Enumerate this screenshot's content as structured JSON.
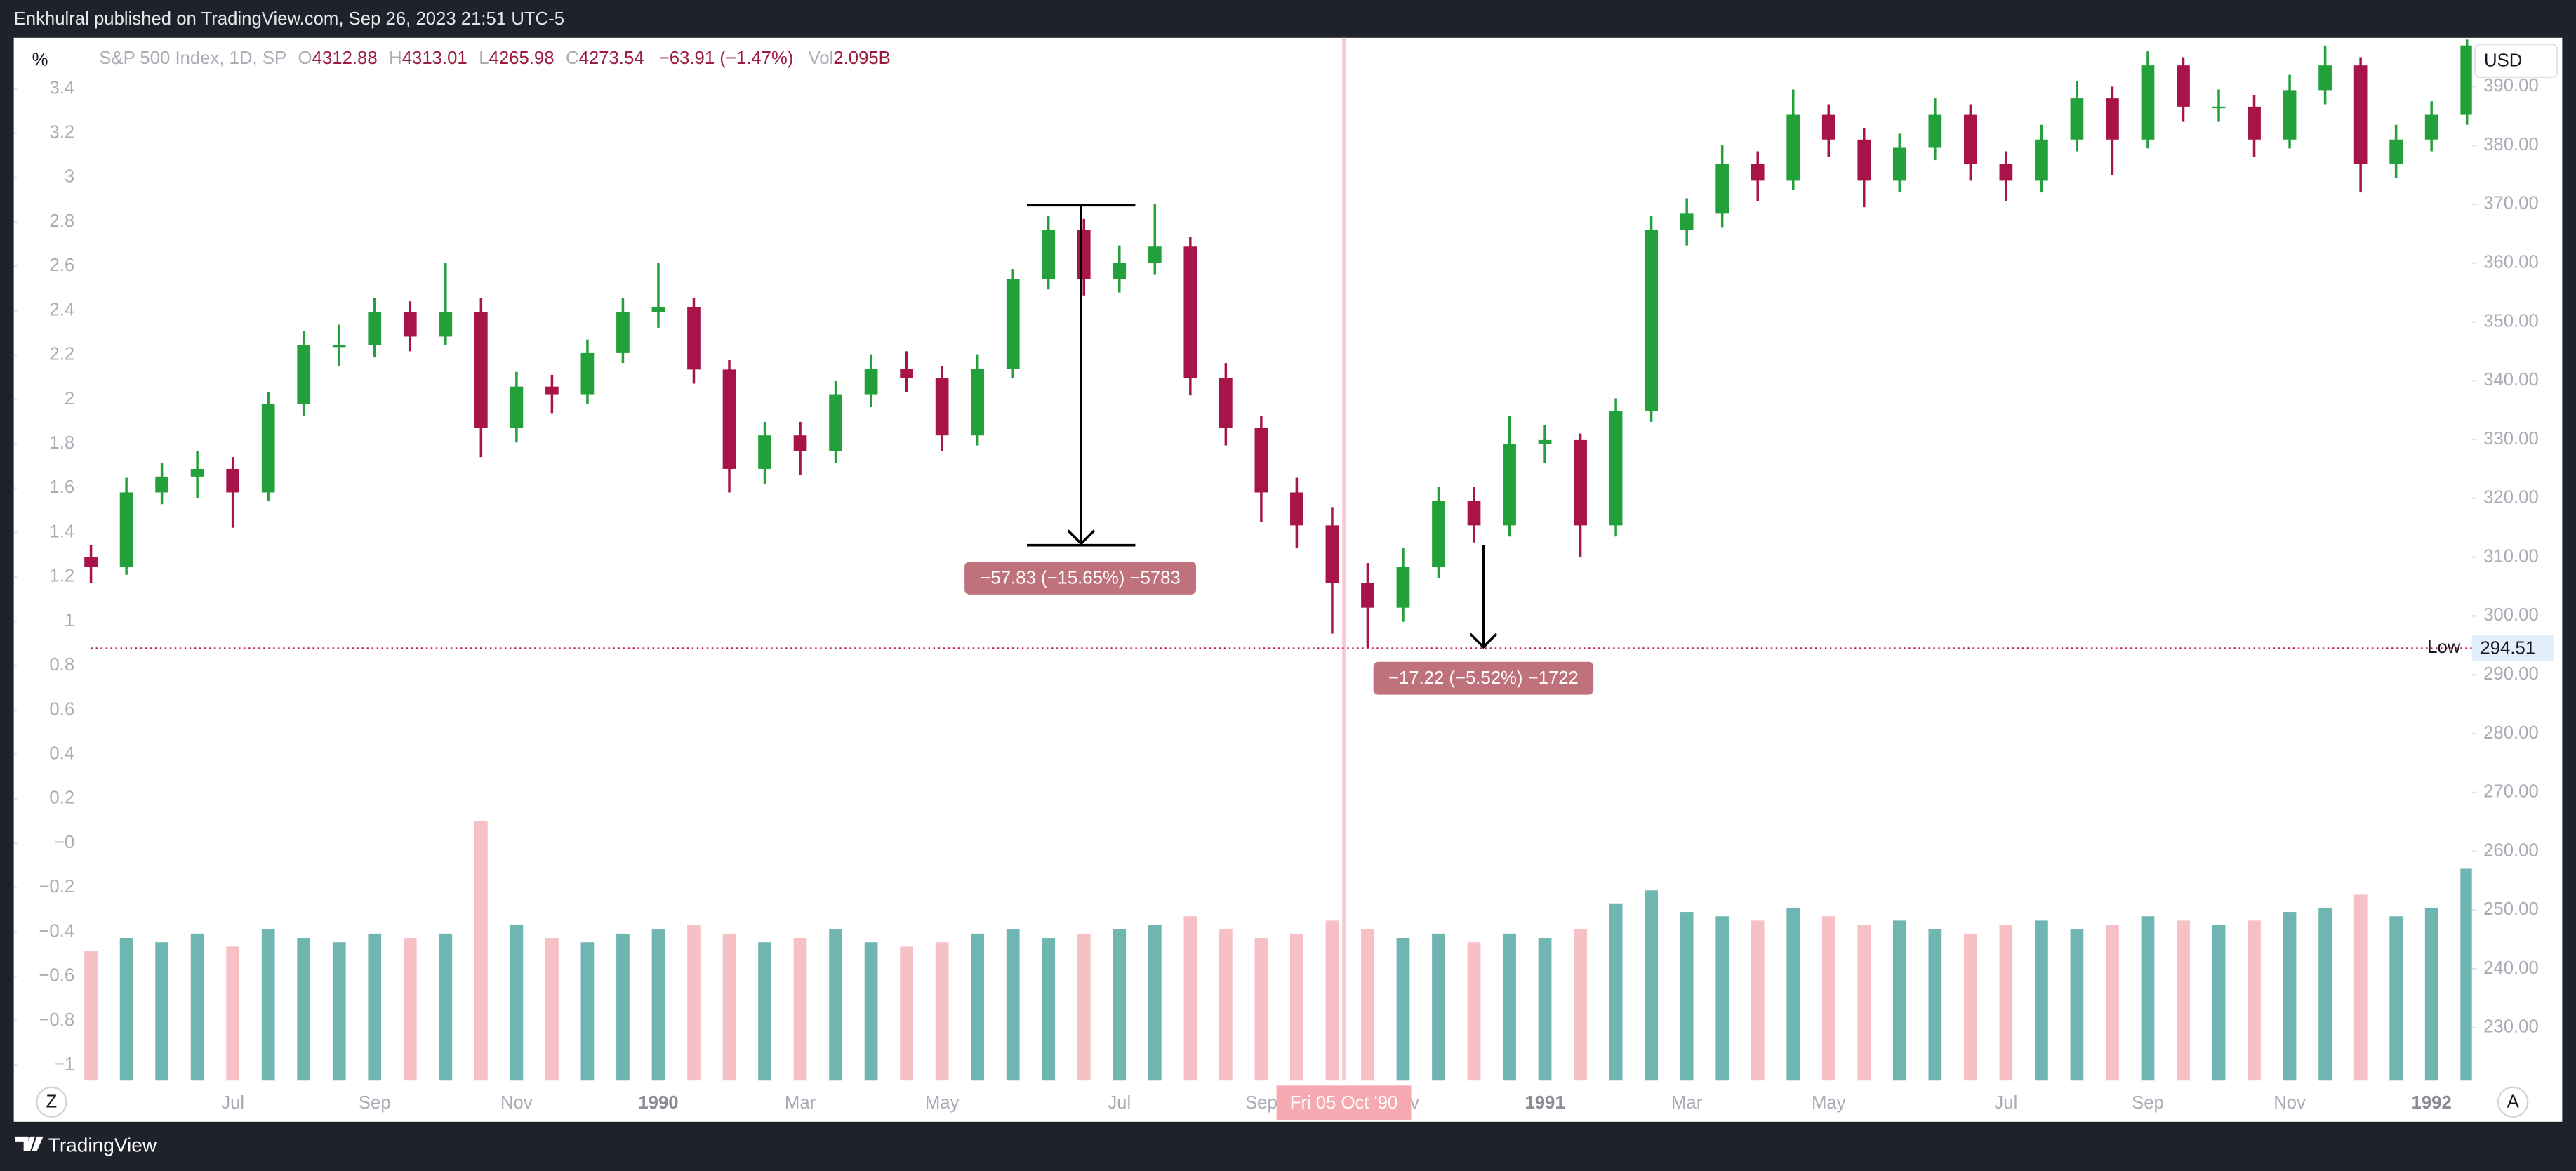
{
  "header": {
    "text": "Enkhulral published on TradingView.com, Sep 26, 2023 21:51 UTC-5"
  },
  "buttons": {
    "percent": "%",
    "currency": "USD",
    "zoom": "Z",
    "auto": "A"
  },
  "legend": {
    "symbol": "S&P 500 Index, 1D, SP",
    "items": [
      {
        "label": "O",
        "value": "4312.88"
      },
      {
        "label": "H",
        "value": "4313.01"
      },
      {
        "label": "L",
        "value": "4265.98"
      },
      {
        "label": "C",
        "value": "4273.54"
      }
    ],
    "change": "−63.91 (−1.47%)",
    "volume": {
      "label": "Vol",
      "value": "2.095B"
    }
  },
  "annotations": [
    {
      "text": "−57.83 (−15.65%) −5783"
    },
    {
      "text": "−17.22 (−5.52%) −1722"
    }
  ],
  "crosshair": {
    "label": "Fri 05 Oct '90"
  },
  "low_marker": {
    "label": "Low",
    "value": 294.51
  },
  "footer": {
    "brand": "TradingView"
  },
  "chart_data": {
    "type": "candlestick",
    "up_color": "#22a03a",
    "down_color": "#a8144a",
    "volume_up_color": "#6fb5b2",
    "volume_down_color": "#f6c0c5",
    "categories": [
      null,
      null,
      null,
      null,
      "Jul",
      null,
      null,
      null,
      "Sep",
      null,
      null,
      null,
      "Nov",
      null,
      null,
      null,
      "1990",
      null,
      null,
      null,
      "Mar",
      null,
      null,
      null,
      "May",
      null,
      null,
      null,
      null,
      "Jul",
      null,
      null,
      null,
      "Sep",
      null,
      null,
      null,
      "Nov",
      null,
      null,
      null,
      "1991",
      null,
      null,
      null,
      "Mar",
      null,
      null,
      null,
      "May",
      null,
      null,
      null,
      null,
      "Jul",
      null,
      null,
      null,
      "Sep",
      null,
      null,
      null,
      "Nov",
      null,
      null,
      null,
      "1992",
      null
    ],
    "open": [
      310,
      308.4,
      321,
      323.7,
      325,
      321,
      336,
      346,
      346,
      351.7,
      347.5,
      351.7,
      332,
      339,
      337.7,
      344.7,
      351.7,
      352.5,
      341.9,
      325,
      330.7,
      328,
      337.7,
      342,
      340.5,
      330.7,
      342,
      357.3,
      365.6,
      357.3,
      360,
      362.8,
      340.5,
      332,
      321,
      315.4,
      305.6,
      301.4,
      308.4,
      319.6,
      315.4,
      329.3,
      329.9,
      315.4,
      334.9,
      365.6,
      368.4,
      376.8,
      374,
      385.2,
      381,
      374,
      379.6,
      385.2,
      376.8,
      374,
      381,
      388,
      381,
      393.6,
      386.6,
      386.6,
      381,
      389.4,
      393.6,
      376.8,
      381,
      385.2
    ],
    "high": [
      312,
      323.5,
      326,
      328,
      327,
      338,
      348.5,
      349.5,
      354,
      353.5,
      360,
      354,
      341.5,
      341,
      347,
      354,
      360,
      354,
      343.5,
      333,
      333,
      340,
      344.5,
      345,
      342.5,
      344.5,
      359,
      368,
      367.5,
      363,
      370,
      364.5,
      343,
      334,
      323.5,
      318.5,
      309,
      311.5,
      322,
      322,
      334,
      332.5,
      331,
      337,
      368,
      371,
      380,
      379,
      389.5,
      387,
      383,
      382,
      388,
      387,
      379,
      383.5,
      391,
      390,
      396,
      395,
      389.5,
      388.5,
      392,
      397,
      395,
      383.5,
      387.5,
      398
    ],
    "low": [
      305.6,
      307,
      319,
      320,
      315,
      319.5,
      334,
      342.5,
      344,
      345,
      346,
      327,
      329.5,
      334.5,
      336,
      343,
      349,
      339.5,
      321,
      322.5,
      324,
      326,
      335.5,
      338,
      328,
      329,
      340.5,
      355.5,
      354.5,
      355,
      358,
      337.5,
      329,
      316,
      311.5,
      297,
      294.51,
      299,
      306.5,
      312.5,
      313.5,
      326,
      310,
      313.5,
      333,
      363,
      366,
      370.5,
      372.5,
      378,
      369.5,
      372,
      377.5,
      374,
      370.5,
      372,
      379,
      375,
      379.5,
      384,
      384,
      378,
      379.5,
      387,
      372,
      374.5,
      379,
      383.5
    ],
    "close": [
      308.4,
      321,
      323.7,
      325,
      321,
      336,
      346,
      346,
      351.7,
      347.5,
      351.7,
      332,
      339,
      337.7,
      344.7,
      351.7,
      352.5,
      341.9,
      325,
      330.7,
      328,
      337.7,
      342,
      340.5,
      330.7,
      342,
      357.3,
      365.6,
      357.3,
      360,
      362.8,
      340.5,
      332,
      321,
      315.4,
      305.6,
      301.4,
      308.4,
      319.6,
      315.4,
      329.3,
      329.9,
      315.4,
      334.9,
      365.6,
      368.4,
      376.8,
      374,
      385.2,
      381,
      374,
      379.6,
      385.2,
      376.8,
      374,
      381,
      388,
      381,
      393.6,
      386.6,
      386.6,
      381,
      389.4,
      393.6,
      376.8,
      381,
      385.2,
      397
    ],
    "volume": [
      150,
      165,
      160,
      170,
      155,
      175,
      165,
      160,
      170,
      165,
      170,
      300,
      180,
      165,
      160,
      170,
      175,
      180,
      170,
      160,
      165,
      175,
      160,
      155,
      160,
      170,
      175,
      165,
      170,
      175,
      180,
      190,
      175,
      165,
      170,
      185,
      175,
      165,
      170,
      160,
      170,
      165,
      175,
      205,
      220,
      195,
      190,
      185,
      200,
      190,
      180,
      185,
      175,
      170,
      180,
      185,
      175,
      180,
      190,
      185,
      180,
      185,
      195,
      200,
      215,
      190,
      200,
      245
    ],
    "ylim": [
      221,
      398.3
    ],
    "yticks": [
      {
        "value": 230,
        "label": "230.00"
      },
      {
        "value": 240,
        "label": "240.00"
      },
      {
        "value": 250,
        "label": "250.00"
      },
      {
        "value": 260,
        "label": "260.00"
      },
      {
        "value": 270,
        "label": "270.00"
      },
      {
        "value": 280,
        "label": "280.00"
      },
      {
        "value": 290,
        "label": "290.00"
      },
      {
        "value": 300,
        "label": "300.00"
      },
      {
        "value": 310,
        "label": "310.00"
      },
      {
        "value": 320,
        "label": "320.00"
      },
      {
        "value": 330,
        "label": "330.00"
      },
      {
        "value": 340,
        "label": "340.00"
      },
      {
        "value": 350,
        "label": "350.00"
      },
      {
        "value": 360,
        "label": "360.00"
      },
      {
        "value": 370,
        "label": "370.00"
      },
      {
        "value": 380,
        "label": "380.00"
      },
      {
        "value": 390,
        "label": "390.00"
      }
    ],
    "y2lim": [
      -1.07,
      3.63
    ],
    "y2ticks": [
      3.4,
      3.2,
      3,
      2.8,
      2.6,
      2.4,
      2.2,
      2,
      1.8,
      1.6,
      1.4,
      1.2,
      1,
      0.8,
      0.6,
      0.4,
      0.2,
      {
        "value": 0,
        "label": "−0"
      },
      {
        "value": -0.2,
        "label": "−0.2"
      },
      {
        "value": -0.4,
        "label": "−0.4"
      },
      {
        "value": -0.6,
        "label": "−0.6"
      },
      {
        "value": -0.8,
        "label": "−0.8"
      },
      {
        "value": -1,
        "label": "−1"
      }
    ]
  }
}
